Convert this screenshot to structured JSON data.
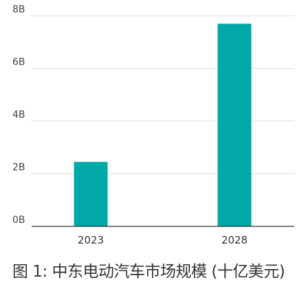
{
  "caption": "图 1: 中东电动汽车市场规模 (十亿美元)",
  "chart_data": {
    "type": "bar",
    "categories": [
      "2023",
      "2028"
    ],
    "values": [
      2.45,
      7.7
    ],
    "ylim": [
      0,
      8
    ],
    "yticks": [
      0,
      2,
      4,
      6,
      8
    ],
    "ytick_labels": [
      "0B",
      "2B",
      "4B",
      "6B",
      "8B"
    ],
    "grid": true,
    "colors": {
      "bar": "#00a8a8"
    }
  }
}
